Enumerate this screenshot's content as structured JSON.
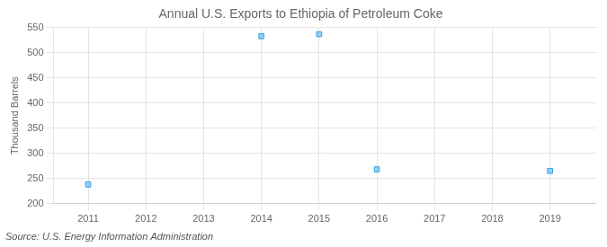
{
  "chart_data": {
    "type": "scatter",
    "title": "Annual U.S. Exports to Ethiopia of Petroleum Coke",
    "ylabel": "Thousand Barrels",
    "annotations": [
      "Source: U.S. Energy Information Administration"
    ],
    "x": [
      2011,
      2014,
      2015,
      2016,
      2019
    ],
    "values": [
      238,
      533,
      537,
      268,
      265
    ],
    "xlim": [
      2010.4,
      2019.8
    ],
    "xticks": [
      2011,
      2012,
      2013,
      2014,
      2015,
      2016,
      2017,
      2018,
      2019
    ],
    "ylim": [
      200,
      550
    ],
    "yticks": [
      200,
      250,
      300,
      350,
      400,
      450,
      500,
      550
    ],
    "grid": true,
    "marker": "square"
  }
}
